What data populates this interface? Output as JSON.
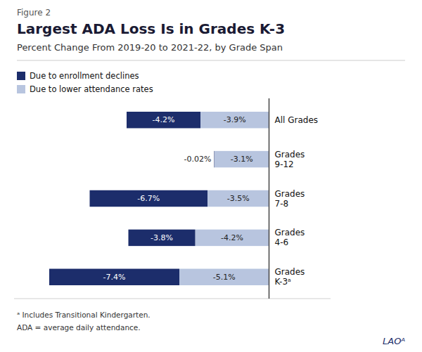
{
  "chart_data": {
    "type": "bar",
    "orientation": "horizontal",
    "stacked": true,
    "data_labels": true,
    "tick_labels": false,
    "legend": "upper left",
    "figure_label": "Figure 2",
    "title": "Largest ADA Loss Is in Grades K-3",
    "subtitle": "Percent Change From 2019-20 to 2021-22, by Grade Span",
    "categories": [
      "All Grades",
      "Grades\n9-12",
      "Grades\n7-8",
      "Grades\n4-6",
      "Grades\nK-3ᵃ"
    ],
    "series": [
      {
        "name": "Due to lower attendance rates",
        "color": "#b8c5df",
        "values": [
          -3.9,
          -3.1,
          -3.5,
          -4.2,
          -5.1
        ],
        "value_labels": [
          "-3.9%",
          "-3.1%",
          "-3.5%",
          "-4.2%",
          "-5.1%"
        ]
      },
      {
        "name": "Due to enrollment declines",
        "color": "#1c2d6b",
        "values": [
          -4.2,
          -0.02,
          -6.7,
          -3.8,
          -7.4
        ],
        "value_labels": [
          "-4.2%",
          "-0.02%",
          "-6.7%",
          "-3.8%",
          "-7.4%"
        ]
      }
    ],
    "xlim": [
      -14.5,
      3.5
    ],
    "footnotes": [
      "ᵃ Includes Transitional Kindergarten.",
      "ADA = average daily attendance."
    ],
    "logo": "LAOᴬ"
  }
}
